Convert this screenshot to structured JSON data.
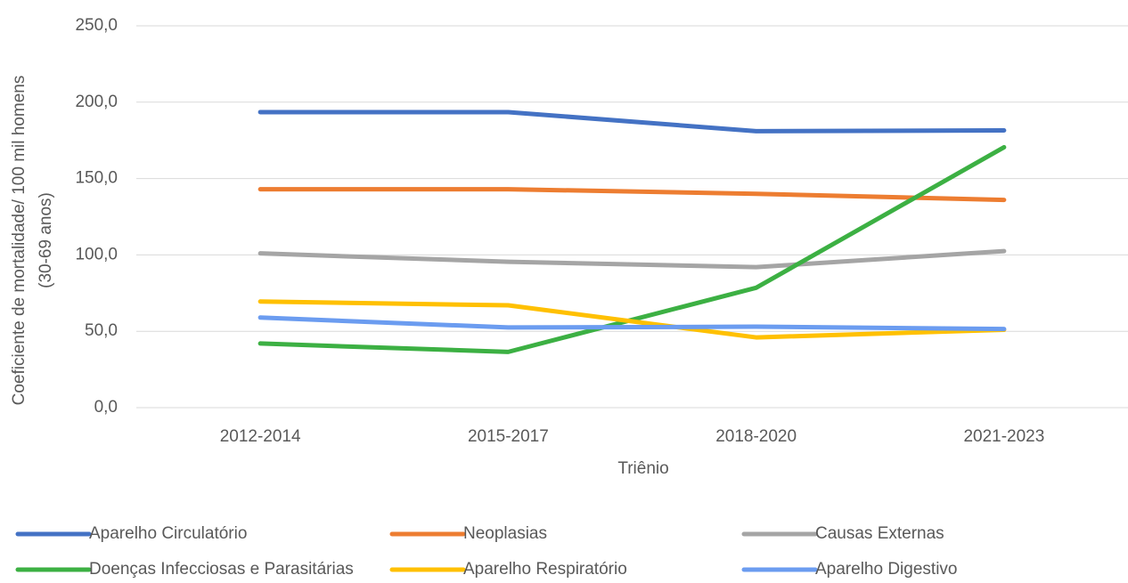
{
  "chart_data": {
    "type": "line",
    "x_label": "Triênio",
    "y_label": [
      "Coeficiente de mortalidade/ 100 mil homens",
      "(30-69 anos)"
    ],
    "categories": [
      "2012-2014",
      "2015-2017",
      "2018-2020",
      "2021-2023"
    ],
    "series": [
      {
        "name": "Aparelho Circulatório",
        "color": "#4472c4",
        "values": [
          193.5,
          193.5,
          181,
          181.5
        ]
      },
      {
        "name": "Neoplasias",
        "color": "#ed7d31",
        "values": [
          143,
          143,
          140,
          136
        ]
      },
      {
        "name": "Causas Externas",
        "color": "#a5a5a5",
        "values": [
          101,
          95.5,
          92,
          102.5
        ]
      },
      {
        "name": "Doenças Infecciosas e Parasitárias",
        "color": "#3cb043",
        "values": [
          42,
          36.5,
          78.5,
          170.5
        ]
      },
      {
        "name": "Aparelho Respiratório",
        "color": "#ffc000",
        "values": [
          69.5,
          67,
          46,
          51
        ]
      },
      {
        "name": "Aparelho Digestivo",
        "color": "#6b9cf0",
        "values": [
          59,
          52.5,
          53,
          51.5
        ]
      }
    ],
    "ylim": [
      0,
      250
    ],
    "yticks": [
      {
        "value": 0,
        "label": "0,0"
      },
      {
        "value": 50,
        "label": "50,0"
      },
      {
        "value": 100,
        "label": "100,0"
      },
      {
        "value": 150,
        "label": "150,0"
      },
      {
        "value": 200,
        "label": "200,0"
      },
      {
        "value": 250,
        "label": "250,0"
      }
    ],
    "grid": true,
    "legend": "bottom"
  }
}
